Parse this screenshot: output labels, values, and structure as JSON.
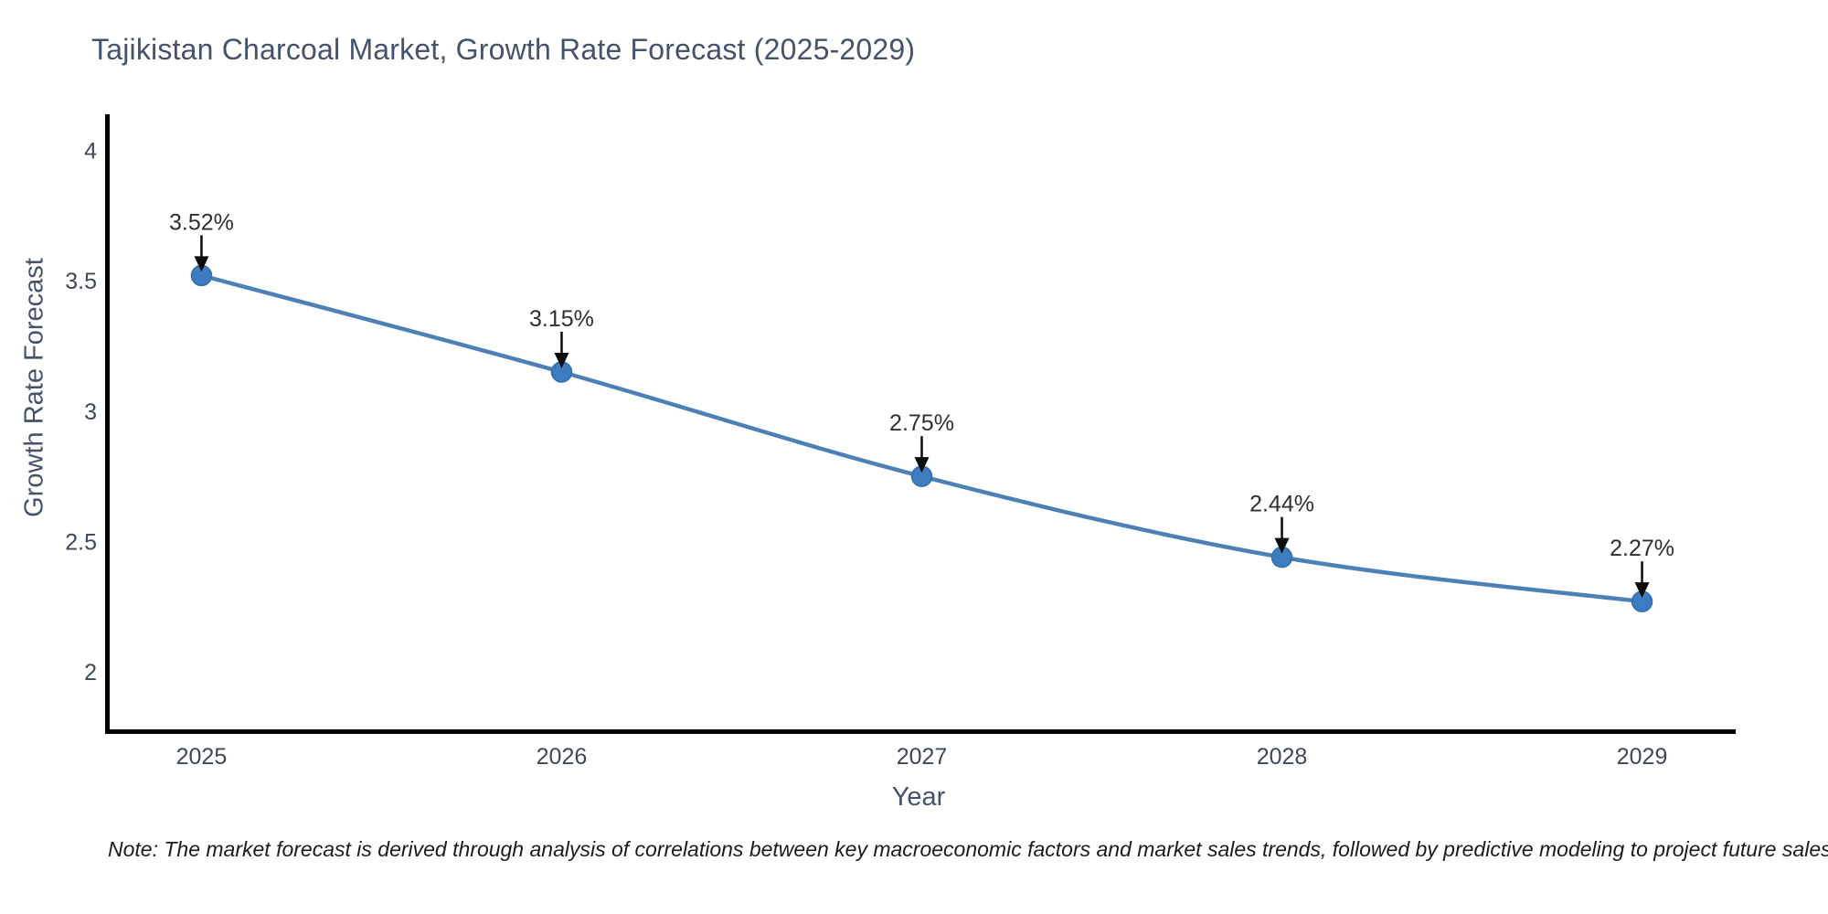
{
  "note": "Note: The market forecast is derived through analysis of correlations between key macroeconomic factors and market sales trends, followed by predictive modeling to project future sales",
  "chart_data": {
    "type": "line",
    "title": "Tajikistan Charcoal Market, Growth Rate Forecast (2025-2029)",
    "xlabel": "Year",
    "ylabel": "Growth Rate Forecast",
    "x": [
      2025,
      2026,
      2027,
      2028,
      2029
    ],
    "values": [
      3.52,
      3.15,
      2.75,
      2.44,
      2.27
    ],
    "point_labels": [
      "3.52%",
      "3.15%",
      "2.75%",
      "2.44%",
      "2.27%"
    ],
    "yticks": [
      "2",
      "2.5",
      "3",
      "3.5",
      "4"
    ],
    "ytick_values": [
      2,
      2.5,
      3,
      3.5,
      4
    ],
    "ylim": [
      1.773,
      4.138
    ],
    "xlim": [
      2024.74,
      2029.26
    ],
    "grid": false,
    "legend": "none",
    "line_shape": "spline",
    "line_color": "#4d81b5",
    "marker_color": "#3d7cc1",
    "marker_edge_color": "#3270ab",
    "annotation_arrow_color": "#0b0b0b",
    "axis_spine_color": "#000000",
    "background_color": "#ffffff"
  }
}
